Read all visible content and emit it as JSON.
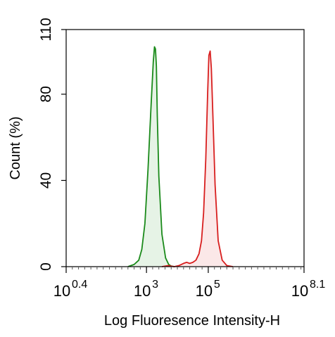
{
  "chart_data": {
    "type": "area",
    "title": "",
    "xlabel": "Log Fluoresence Intensity-H",
    "ylabel": "Count  (%)",
    "x_scale": "log",
    "xlim_log10": [
      0.4,
      8.1
    ],
    "ylim": [
      0,
      110
    ],
    "x_ticks": [
      {
        "base": "10",
        "exp": "0.4",
        "log10": 0.4
      },
      {
        "base": "10",
        "exp": "3",
        "log10": 3
      },
      {
        "base": "10",
        "exp": "5",
        "log10": 5
      },
      {
        "base": "10",
        "exp": "8.1",
        "log10": 8.1
      }
    ],
    "y_ticks": [
      {
        "label": "0",
        "value": 0
      },
      {
        "label": "40",
        "value": 40
      },
      {
        "label": "80",
        "value": 80
      },
      {
        "label": "110",
        "value": 110
      }
    ],
    "grid": false,
    "legend": "none",
    "series": [
      {
        "color": "#1a8a1a",
        "fill": "#e6f3e6",
        "log10_x": [
          2.4,
          2.6,
          2.75,
          2.85,
          2.95,
          3.05,
          3.15,
          3.22,
          3.26,
          3.29,
          3.32,
          3.35,
          3.4,
          3.5,
          3.62,
          3.72,
          3.8,
          3.9
        ],
        "y": [
          0,
          1,
          3,
          8,
          20,
          45,
          75,
          95,
          102,
          101,
          93,
          70,
          42,
          15,
          4,
          1,
          0.3,
          0
        ]
      },
      {
        "color": "#d81e1e",
        "fill": "#fbe8e8",
        "log10_x": [
          3.5,
          3.7,
          3.9,
          4.05,
          4.2,
          4.3,
          4.4,
          4.5,
          4.6,
          4.7,
          4.78,
          4.85,
          4.92,
          4.98,
          5.02,
          5.06,
          5.1,
          5.15,
          5.22,
          5.32,
          5.45,
          5.6,
          5.8
        ],
        "y": [
          0,
          0.5,
          0,
          0.5,
          1.5,
          2,
          1.5,
          2,
          3,
          6,
          12,
          25,
          50,
          80,
          98,
          100,
          92,
          70,
          38,
          12,
          3,
          0.5,
          0
        ]
      }
    ]
  }
}
